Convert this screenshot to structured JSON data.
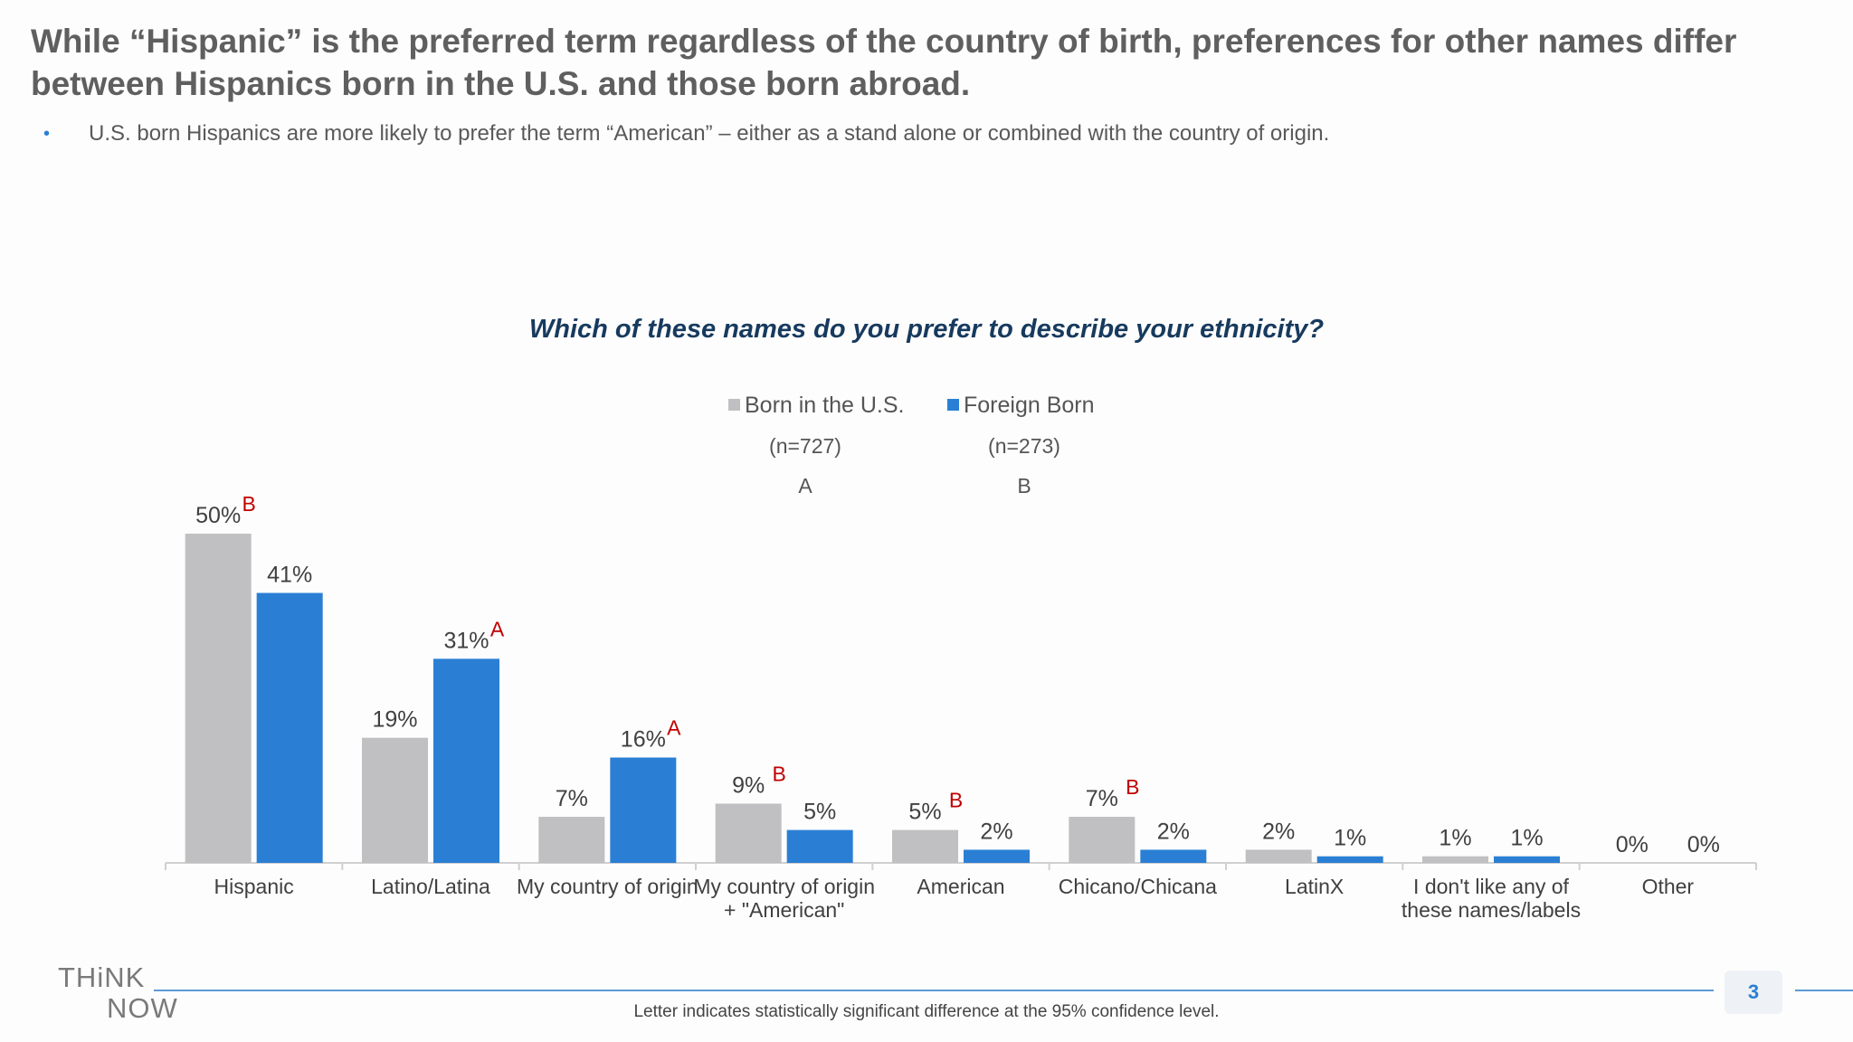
{
  "headline": "While “Hispanic” is the preferred term regardless of the country of birth, preferences for other names differ between Hispanics born in the U.S. and those born abroad.",
  "bullet": "U.S. born Hispanics are more likely to prefer the term “American” – either as a stand alone or combined with the country of origin.",
  "bullet_symbol": "•",
  "footnote": "Letter indicates statistically significant difference at the 95% confidence level.",
  "page_number": "3",
  "logo": {
    "line1": "THiNK",
    "line2": "NOW"
  },
  "colors": {
    "accent": "#2a7fd4",
    "significance": "#c00000",
    "title": "#173a5e",
    "grey_series": "#c0bfc1"
  },
  "chart_data": {
    "type": "bar",
    "title": "Which of these names do you prefer to describe your ethnicity?",
    "categories": [
      [
        "Hispanic"
      ],
      [
        "Latino/Latina"
      ],
      [
        "My country of origin"
      ],
      [
        "My country of origin",
        "+ \"American\""
      ],
      [
        "American"
      ],
      [
        "Chicano/Chicana"
      ],
      [
        "LatinX"
      ],
      [
        "I don't like any of",
        "these names/labels"
      ],
      [
        "Other"
      ]
    ],
    "series": [
      {
        "name": "Born in the U.S.",
        "n": "(n=727)",
        "letter": "A",
        "color": "#c0bfc1",
        "values": [
          50,
          19,
          7,
          9,
          5,
          7,
          2,
          1,
          0
        ],
        "labels": [
          "50%",
          "19%",
          "7%",
          "9%",
          "5%",
          "7%",
          "2%",
          "1%",
          "0%"
        ],
        "significance": [
          "B",
          "",
          "",
          "B",
          "B",
          "B",
          "",
          "",
          ""
        ]
      },
      {
        "name": "Foreign Born",
        "n": "(n=273)",
        "letter": "B",
        "color": "#2a7fd4",
        "values": [
          41,
          31,
          16,
          5,
          2,
          2,
          1,
          1,
          0
        ],
        "labels": [
          "41%",
          "31%",
          "16%",
          "5%",
          "2%",
          "2%",
          "1%",
          "1%",
          "0%"
        ],
        "significance": [
          "",
          "A",
          "A",
          "",
          "",
          "",
          "",
          "",
          ""
        ]
      }
    ],
    "ylim": [
      0,
      50
    ],
    "legend_position": "top-center",
    "grid": false
  }
}
